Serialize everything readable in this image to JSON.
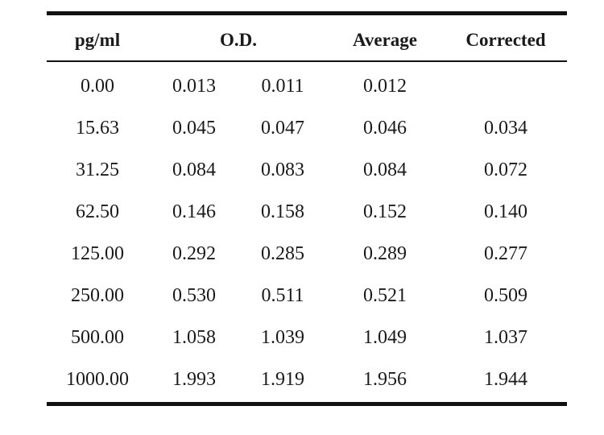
{
  "table": {
    "headers": {
      "concentration": "pg/ml",
      "od": "O.D.",
      "average": "Average",
      "corrected": "Corrected"
    },
    "rows": [
      {
        "conc": "0.00",
        "od1": "0.013",
        "od2": "0.011",
        "avg": "0.012",
        "cor": ""
      },
      {
        "conc": "15.63",
        "od1": "0.045",
        "od2": "0.047",
        "avg": "0.046",
        "cor": "0.034"
      },
      {
        "conc": "31.25",
        "od1": "0.084",
        "od2": "0.083",
        "avg": "0.084",
        "cor": "0.072"
      },
      {
        "conc": "62.50",
        "od1": "0.146",
        "od2": "0.158",
        "avg": "0.152",
        "cor": "0.140"
      },
      {
        "conc": "125.00",
        "od1": "0.292",
        "od2": "0.285",
        "avg": "0.289",
        "cor": "0.277"
      },
      {
        "conc": "250.00",
        "od1": "0.530",
        "od2": "0.511",
        "avg": "0.521",
        "cor": "0.509"
      },
      {
        "conc": "500.00",
        "od1": "1.058",
        "od2": "1.039",
        "avg": "1.049",
        "cor": "1.037"
      },
      {
        "conc": "1000.00",
        "od1": "1.993",
        "od2": "1.919",
        "avg": "1.956",
        "cor": "1.944"
      }
    ]
  }
}
